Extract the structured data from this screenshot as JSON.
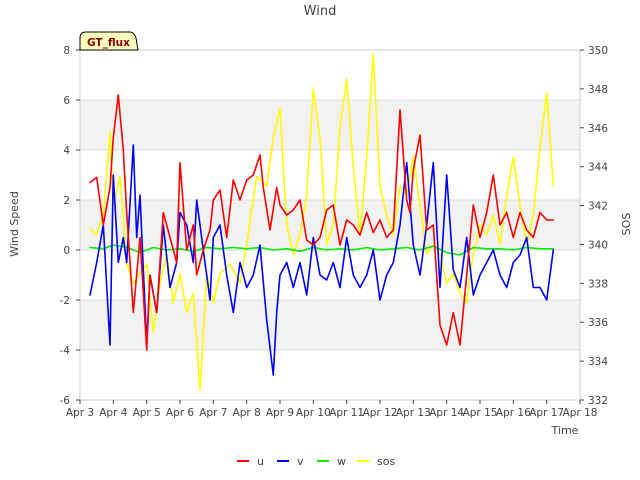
{
  "chart_data": {
    "type": "line",
    "title": "Wind",
    "site_badge": "GT_flux",
    "xlabel": "Time",
    "ylabel_left": "Wind Speed",
    "ylabel_right": "SOS",
    "xlim": [
      3,
      18
    ],
    "ylim_left": [
      -6,
      8
    ],
    "ylim_right": [
      332,
      350
    ],
    "x_ticks": [
      {
        "value": 3,
        "label": "Apr 3"
      },
      {
        "value": 4,
        "label": "Apr 4"
      },
      {
        "value": 5,
        "label": "Apr 5"
      },
      {
        "value": 6,
        "label": "Apr 6"
      },
      {
        "value": 7,
        "label": "Apr 7"
      },
      {
        "value": 8,
        "label": "Apr 8"
      },
      {
        "value": 9,
        "label": "Apr 9"
      },
      {
        "value": 10,
        "label": "Apr 10"
      },
      {
        "value": 11,
        "label": "Apr 11"
      },
      {
        "value": 12,
        "label": "Apr 12"
      },
      {
        "value": 13,
        "label": "Apr 13"
      },
      {
        "value": 14,
        "label": "Apr 14"
      },
      {
        "value": 15,
        "label": "Apr 15"
      },
      {
        "value": 16,
        "label": "Apr 16"
      },
      {
        "value": 17,
        "label": "Apr 17"
      },
      {
        "value": 18,
        "label": "Apr 18"
      }
    ],
    "y_ticks_left": [
      -6,
      -4,
      -2,
      0,
      2,
      4,
      6,
      8
    ],
    "y_ticks_right": [
      332,
      334,
      336,
      338,
      340,
      342,
      344,
      346,
      348,
      350
    ],
    "grid": "horizontal bands",
    "legend_position": "bottom-center",
    "series": [
      {
        "name": "u",
        "axis": "left",
        "color": "#ff0000",
        "x": [
          3.3,
          3.5,
          3.7,
          3.9,
          4.0,
          4.15,
          4.3,
          4.4,
          4.6,
          4.8,
          5.0,
          5.1,
          5.3,
          5.5,
          5.7,
          5.9,
          6.0,
          6.2,
          6.4,
          6.5,
          6.7,
          6.9,
          7.0,
          7.2,
          7.4,
          7.6,
          7.8,
          8.0,
          8.2,
          8.4,
          8.5,
          8.7,
          8.9,
          9.0,
          9.2,
          9.4,
          9.6,
          9.8,
          10.0,
          10.2,
          10.4,
          10.6,
          10.8,
          11.0,
          11.2,
          11.4,
          11.6,
          11.8,
          12.0,
          12.2,
          12.4,
          12.6,
          12.8,
          12.9,
          13.0,
          13.2,
          13.4,
          13.6,
          13.8,
          14.0,
          14.2,
          14.4,
          14.6,
          14.8,
          15.0,
          15.2,
          15.4,
          15.6,
          15.8,
          16.0,
          16.2,
          16.4,
          16.6,
          16.8,
          17.0,
          17.2
        ],
        "values": [
          2.7,
          2.9,
          1.0,
          2.5,
          4.5,
          6.2,
          4.0,
          1.5,
          -2.5,
          0.5,
          -4.0,
          -1.0,
          -2.5,
          1.5,
          0.5,
          -0.5,
          3.5,
          0.0,
          1.0,
          -1.0,
          0.0,
          0.8,
          2.0,
          2.4,
          0.5,
          2.8,
          2.0,
          2.8,
          3.0,
          3.8,
          2.5,
          0.8,
          2.5,
          1.8,
          1.4,
          1.6,
          2.0,
          0.4,
          0.2,
          0.5,
          1.6,
          1.8,
          0.2,
          1.2,
          1.0,
          0.6,
          1.5,
          0.7,
          1.2,
          0.5,
          0.8,
          5.6,
          2.0,
          1.5,
          3.2,
          4.6,
          0.8,
          1.0,
          -3.0,
          -3.8,
          -2.5,
          -3.8,
          -1.0,
          1.8,
          0.5,
          1.5,
          3.0,
          1.0,
          1.5,
          0.5,
          1.5,
          0.8,
          0.5,
          1.5,
          1.2,
          1.2
        ]
      },
      {
        "name": "v",
        "axis": "left",
        "color": "#0000ff",
        "x": [
          3.3,
          3.5,
          3.7,
          3.9,
          4.0,
          4.15,
          4.3,
          4.4,
          4.6,
          4.7,
          4.8,
          5.0,
          5.1,
          5.3,
          5.5,
          5.7,
          5.9,
          6.0,
          6.2,
          6.4,
          6.5,
          6.7,
          6.9,
          7.0,
          7.2,
          7.4,
          7.6,
          7.8,
          8.0,
          8.2,
          8.4,
          8.6,
          8.8,
          8.9,
          9.0,
          9.2,
          9.4,
          9.6,
          9.8,
          10.0,
          10.2,
          10.4,
          10.6,
          10.8,
          11.0,
          11.2,
          11.4,
          11.6,
          11.8,
          12.0,
          12.2,
          12.4,
          12.6,
          12.8,
          13.0,
          13.2,
          13.4,
          13.6,
          13.8,
          14.0,
          14.2,
          14.4,
          14.6,
          14.8,
          15.0,
          15.2,
          15.4,
          15.6,
          15.8,
          16.0,
          16.2,
          16.4,
          16.6,
          16.8,
          17.0,
          17.2
        ],
        "values": [
          -1.8,
          -0.5,
          1.0,
          -3.8,
          3.0,
          -0.5,
          0.5,
          -0.5,
          4.2,
          0.5,
          2.2,
          -3.8,
          -1.0,
          -2.5,
          1.0,
          -1.5,
          -0.5,
          1.5,
          1.0,
          -0.5,
          2.0,
          0.0,
          -2.0,
          0.5,
          1.0,
          -1.0,
          -2.5,
          -0.5,
          -1.5,
          -1.0,
          0.2,
          -2.8,
          -5.0,
          -2.5,
          -1.0,
          -0.5,
          -1.5,
          -0.5,
          -1.8,
          0.5,
          -1.0,
          -1.2,
          -0.5,
          -1.5,
          0.5,
          -1.0,
          -1.5,
          -1.0,
          0.0,
          -2.0,
          -1.0,
          -0.5,
          1.0,
          3.5,
          0.2,
          -1.0,
          1.0,
          3.5,
          -1.5,
          3.0,
          -0.8,
          -1.5,
          0.5,
          -1.8,
          -1.0,
          -0.5,
          0.0,
          -1.0,
          -1.5,
          -0.5,
          -0.2,
          0.5,
          -1.5,
          -1.5,
          -2.0,
          0.0
        ]
      },
      {
        "name": "w",
        "axis": "left",
        "color": "#00ee00",
        "x": [
          3.3,
          3.7,
          4.0,
          4.4,
          4.8,
          5.2,
          5.6,
          6.0,
          6.4,
          6.8,
          7.2,
          7.6,
          8.0,
          8.4,
          8.8,
          9.2,
          9.6,
          10.0,
          10.4,
          10.8,
          11.2,
          11.6,
          12.0,
          12.4,
          12.8,
          13.2,
          13.6,
          14.0,
          14.4,
          14.8,
          15.2,
          15.6,
          16.0,
          16.4,
          16.8,
          17.2
        ],
        "values": [
          0.1,
          0.05,
          0.2,
          0.1,
          -0.1,
          0.1,
          0.0,
          0.05,
          -0.05,
          0.1,
          0.05,
          0.1,
          0.05,
          0.1,
          0.0,
          0.05,
          -0.05,
          0.1,
          0.0,
          0.05,
          0.0,
          0.1,
          0.0,
          0.05,
          0.1,
          0.0,
          0.15,
          -0.1,
          -0.2,
          0.1,
          0.05,
          0.05,
          0.0,
          0.1,
          0.05,
          0.05
        ]
      },
      {
        "name": "sos",
        "axis": "right",
        "color": "#ffff00",
        "x": [
          3.3,
          3.5,
          3.7,
          3.9,
          4.0,
          4.2,
          4.4,
          4.6,
          4.8,
          5.0,
          5.2,
          5.4,
          5.6,
          5.8,
          6.0,
          6.2,
          6.4,
          6.6,
          6.8,
          7.0,
          7.2,
          7.5,
          7.8,
          8.0,
          8.3,
          8.6,
          8.8,
          9.0,
          9.2,
          9.4,
          9.6,
          9.8,
          10.0,
          10.2,
          10.4,
          10.6,
          10.8,
          11.0,
          11.2,
          11.4,
          11.6,
          11.8,
          12.0,
          12.2,
          12.4,
          12.6,
          12.8,
          13.0,
          13.2,
          13.4,
          13.6,
          13.8,
          14.0,
          14.2,
          14.4,
          14.6,
          14.8,
          15.0,
          15.2,
          15.4,
          15.6,
          15.8,
          16.0,
          16.2,
          16.4,
          16.6,
          16.8,
          17.0,
          17.2
        ],
        "values": [
          340.8,
          340.5,
          341.5,
          345.8,
          342.0,
          343.5,
          339.0,
          338.0,
          338.5,
          339.0,
          335.5,
          338.0,
          339.5,
          337.0,
          338.5,
          336.5,
          337.5,
          332.5,
          338.5,
          337.0,
          338.5,
          339.0,
          338.0,
          340.0,
          343.5,
          343.0,
          345.5,
          347.0,
          341.0,
          339.5,
          340.5,
          342.5,
          348.0,
          345.5,
          340.0,
          341.0,
          346.0,
          348.5,
          344.0,
          340.5,
          344.5,
          349.8,
          343.0,
          341.5,
          340.5,
          343.0,
          342.5,
          344.5,
          342.0,
          339.5,
          340.0,
          339.5,
          338.0,
          338.5,
          337.5,
          337.0,
          339.5,
          341.0,
          340.5,
          341.5,
          340.0,
          342.5,
          344.5,
          342.0,
          340.0,
          341.5,
          345.0,
          347.8,
          343.0
        ]
      }
    ]
  }
}
